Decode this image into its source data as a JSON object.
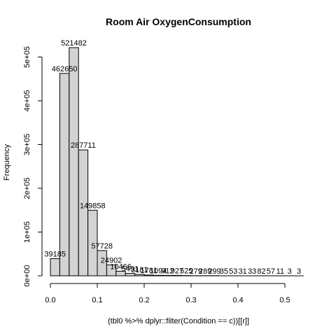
{
  "chart_data": {
    "type": "bar",
    "title": "Room Air OxygenConsumption",
    "xlabel": "(tbl0 %>% dplyr::filter(Condition == c))[[r]]",
    "ylabel": "Frequency",
    "bin_width": 0.02,
    "bins_start": [
      0.0,
      0.02,
      0.04,
      0.06,
      0.08,
      0.1,
      0.12,
      0.14,
      0.16,
      0.18,
      0.2,
      0.22,
      0.24,
      0.26,
      0.28,
      0.3,
      0.32,
      0.34,
      0.36,
      0.38,
      0.4,
      0.42,
      0.44,
      0.46,
      0.48,
      0.5,
      0.52
    ],
    "values": [
      39185,
      462650,
      521482,
      287711,
      149858,
      57728,
      24902,
      10466,
      5491,
      3181,
      1781,
      1094,
      912,
      927,
      525,
      279,
      289,
      299,
      35,
      53,
      31,
      33,
      82,
      57,
      11,
      3,
      3
    ],
    "value_labels": [
      "39185",
      "462650",
      "521482",
      "287711",
      "149858",
      "57728",
      "24902",
      "10466",
      "5491",
      "3181",
      "1781",
      "1094",
      "912",
      "927",
      "525",
      "279",
      "289",
      "299",
      "35",
      "53",
      "31",
      "33",
      "82",
      "57",
      "11",
      "3",
      "3"
    ],
    "xlim": [
      0,
      0.54
    ],
    "ylim": [
      0,
      540000
    ],
    "x_ticks": [
      0.0,
      0.1,
      0.2,
      0.3,
      0.4,
      0.5
    ],
    "x_tick_labels": [
      "0.0",
      "0.1",
      "0.2",
      "0.3",
      "0.4",
      "0.5"
    ],
    "y_ticks": [
      0,
      100000,
      200000,
      300000,
      400000,
      500000
    ],
    "y_tick_labels": [
      "0e+00",
      "1e+05",
      "2e+05",
      "3e+05",
      "4e+05",
      "5e+05"
    ],
    "bar_color": "#d3d3d3",
    "grid": false
  }
}
